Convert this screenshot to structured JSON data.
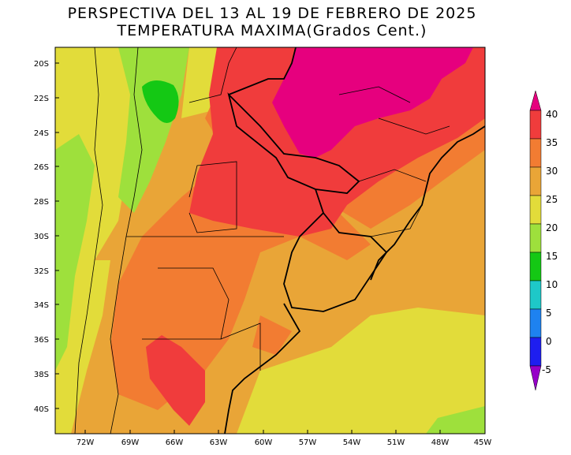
{
  "title": {
    "line1": "PERSPECTIVA DEL 13 AL 19 DE FEBRERO DE 2025",
    "line2": "TEMPERATURA MAXIMA(Grados Cent.)"
  },
  "map": {
    "lat_ticks": [
      "20S",
      "22S",
      "24S",
      "26S",
      "28S",
      "30S",
      "32S",
      "34S",
      "36S",
      "38S",
      "40S"
    ],
    "lon_ticks": [
      "72W",
      "69W",
      "66W",
      "63W",
      "60W",
      "57W",
      "54W",
      "51W",
      "48W",
      "45W"
    ]
  },
  "legend": {
    "labels": [
      "40",
      "35",
      "30",
      "25",
      "20",
      "15",
      "10",
      "5",
      "0",
      "-5"
    ],
    "colors": {
      "above_40": "#e6007e",
      "35_40": "#f03c3c",
      "30_35": "#f27c32",
      "25_30": "#e9a537",
      "20_25": "#e2dc3a",
      "15_20": "#9ee03c",
      "10_15": "#14c814",
      "5_10": "#1ec8c8",
      "0_5": "#1e82f0",
      "-5_0": "#1e1ef0",
      "below_-5": "#9600c8"
    }
  }
}
